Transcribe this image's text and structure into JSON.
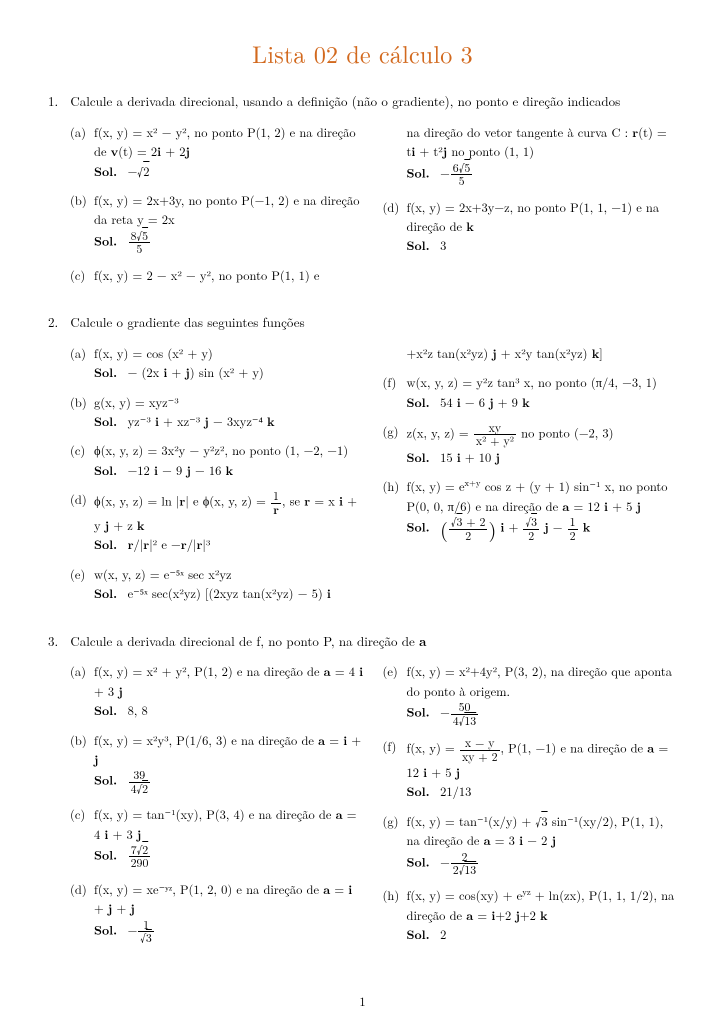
{
  "title": {
    "text": "Lista 02 de cálculo 3",
    "color": "#d2691e",
    "fontsize": 24
  },
  "page_number": "1",
  "body_color": "#000000",
  "background_color": "#ffffff",
  "problems": [
    {
      "num": "1.",
      "text": "Calcule a derivada direcional, usando a definição (não o gradiente), no ponto e direção indicados",
      "left": [
        {
          "label": "(a)",
          "body": "f(x, y) = x² − y², no ponto P(1, 2) e na direção de <b>v</b>(t) = 2<b>i</b> + 2<b>j</b>",
          "sol": "−√<span class='sqrt'>2</span>"
        },
        {
          "label": "(b)",
          "body": "f(x, y) = 2x+3y, no ponto P(−1, 2) e na direção da reta y = 2x",
          "sol_html": "<span class='frac'><span class='num'>8√<span class='sqrt'>5</span></span><span class='den'>5</span></span>"
        },
        {
          "label": "(c)",
          "body": "f(x, y) = 2 − x² − y², no ponto P(1, 1) e",
          "sol": null
        }
      ],
      "right": [
        {
          "label": "",
          "body": "na direção do vetor tangente à curva C : <b>r</b>(t) = t<b>i</b> + t²<b>j</b> no ponto (1, 1)",
          "sol_html": "−<span class='frac'><span class='num'>6√<span class='sqrt'>5</span></span><span class='den'>5</span></span>"
        },
        {
          "label": "(d)",
          "body": "f(x, y) = 2x+3y−z, no ponto P(1, 1, −1) e na direção de <b>k</b>",
          "sol": "3"
        }
      ]
    },
    {
      "num": "2.",
      "text": "Calcule o gradiente das seguintes funções",
      "left": [
        {
          "label": "(a)",
          "body": "f(x, y) = cos (x² + y)",
          "sol": "− (2x <b>i</b> + <b>j</b>) sin (x² + y)"
        },
        {
          "label": "(b)",
          "body": "g(x, y) = xyz⁻³",
          "sol": "yz⁻³ <b>i</b> + xz⁻³ <b>j</b> − 3xyz⁻⁴ <b>k</b>"
        },
        {
          "label": "(c)",
          "body": "ϕ(x, y, z) = 3x²y − y²z², no ponto (1, −2, −1)",
          "sol": "−12 <b>i</b> − 9 <b>j</b> − 16 <b>k</b>"
        },
        {
          "label": "(d)",
          "body_html": "ϕ(x, y, z) = ln |<b>r</b>| e ϕ(x, y, z) = <span class='frac'><span class='num'>1</span><span class='den'><b>r</b></span></span>, se <b>r</b> = x <b>i</b> + y <b>j</b> + z <b>k</b>",
          "sol": "<b>r</b>/|<b>r</b>|² e −<b>r</b>/|<b>r</b>|³"
        },
        {
          "label": "(e)",
          "body": "w(x, y, z) = e⁻⁵ˣ sec x²yz",
          "sol": "e⁻⁵ˣ sec(x²yz) [(2xyz tan(x²yz) − 5) <b>i</b>"
        }
      ],
      "right": [
        {
          "label": "",
          "body": "+x²z tan(x²yz) <b>j</b> + x²y tan(x²yz) <b>k</b>]",
          "sol": null
        },
        {
          "label": "(f)",
          "body": "w(x, y, z) = y²z tan³ x, no ponto (π/4, −3, 1)",
          "sol": "54 <b>i</b> − 6 <b>j</b> + 9 <b>k</b>"
        },
        {
          "label": "(g)",
          "body_html": "z(x, y, z) = <span class='frac'><span class='num'>xy</span><span class='den'>x² + y²</span></span> no ponto (−2, 3)",
          "sol": "15 <b>i</b> + 10 <b>j</b>"
        },
        {
          "label": "(h)",
          "body": "f(x, y) = e<sup>x+y</sup> cos z + (y + 1) sin⁻¹ x, no ponto P(0, 0, π/6) e na direção de <b>a</b> = 12 <b>i</b> + 5 <b>j</b>",
          "sol_html": "<span class='paren-big'>(</span><span class='frac'><span class='num'>√<span class='sqrt'>3</span> + 2</span><span class='den'>2</span></span><span class='paren-big'>)</span> <b>i</b> + <span class='frac'><span class='num'>√<span class='sqrt'>3</span></span><span class='den'>2</span></span> <b>j</b> − <span class='frac'><span class='num'>1</span><span class='den'>2</span></span> <b>k</b>"
        }
      ]
    },
    {
      "num": "3.",
      "text": "Calcule a derivada direcional de f, no ponto P, na direção de <b>a</b>",
      "left": [
        {
          "label": "(a)",
          "body": "f(x, y) = x² + y², P(1, 2) e na direção de <b>a</b> = 4 <b>i</b> + 3 <b>j</b>",
          "sol": "8, 8"
        },
        {
          "label": "(b)",
          "body": "f(x, y) = x²y³, P(1/6, 3) e na direção de <b>a</b> = <b>i</b> + <b>j</b>",
          "sol_html": "<span class='frac'><span class='num'>39</span><span class='den'>4√<span class='sqrt'>2</span></span></span>"
        },
        {
          "label": "(c)",
          "body": "f(x, y) = tan⁻¹(xy), P(3, 4) e na direção de <b>a</b> = 4 <b>i</b> + 3 <b>j</b>",
          "sol_html": "<span class='frac'><span class='num'>7√<span class='sqrt'>2</span></span><span class='den'>290</span></span>"
        },
        {
          "label": "(d)",
          "body": "f(x, y) = xe⁻ʸᶻ, P(1, 2, 0) e na direção de <b>a</b> = <b>i</b> + <b>j</b> + <b>j</b>",
          "sol_html": "−<span class='frac'><span class='num'>1</span><span class='den'>√<span class='sqrt'>3</span></span></span>"
        }
      ],
      "right": [
        {
          "label": "(e)",
          "body": "f(x, y) = x²+4y², P(3, 2), na direção que aponta do ponto à origem.",
          "sol_html": "−<span class='frac'><span class='num'>50</span><span class='den'>4√<span class='sqrt'>13</span></span></span>"
        },
        {
          "label": "(f)",
          "body_html": "f(x, y) = <span class='frac'><span class='num'>x − y</span><span class='den'>xy + 2</span></span>, P(1, −1) e na direção de <b>a</b> = 12 <b>i</b> + 5 <b>j</b>",
          "sol": "21/13"
        },
        {
          "label": "(g)",
          "body": "f(x, y) = tan⁻¹(x/y) + √<span class='sqrt'>3</span> sin⁻¹(xy/2), P(1, 1), na direção de <b>a</b> = 3 <b>i</b> − 2 <b>j</b>",
          "sol_html": "−<span class='frac'><span class='num'>2</span><span class='den'>2√<span class='sqrt'>13</span></span></span>"
        },
        {
          "label": "(h)",
          "body": "f(x, y) = cos(xy) + e<sup>yz</sup> + ln(zx), P(1, 1, 1/2), na direção de <b>a</b> = <b>i</b>+2 <b>j</b>+2 <b>k</b>",
          "sol": "2"
        }
      ]
    }
  ]
}
